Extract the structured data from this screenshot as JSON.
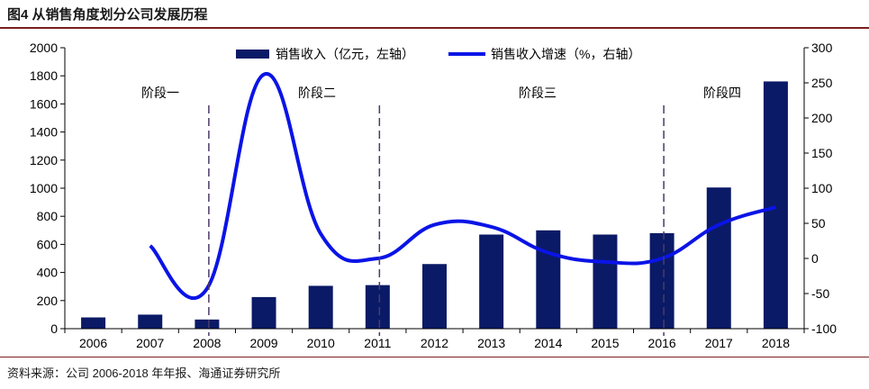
{
  "figure": {
    "title": "图4  从销售角度划分公司发展历程",
    "source": "资料来源：公司 2006-2018 年年报、海通证券研究所"
  },
  "chart_data": {
    "type": "bar",
    "categories": [
      "2006",
      "2007",
      "2008",
      "2009",
      "2010",
      "2011",
      "2012",
      "2013",
      "2014",
      "2015",
      "2016",
      "2017",
      "2018"
    ],
    "series": [
      {
        "name": "销售收入（亿元，左轴）",
        "type": "bar",
        "axis": "left",
        "color": "#0a1a66",
        "values": [
          80,
          100,
          65,
          225,
          305,
          310,
          460,
          670,
          700,
          670,
          680,
          1005,
          1760
        ]
      },
      {
        "name": "销售收入增速（%，右轴）",
        "type": "line",
        "axis": "right",
        "smooth": true,
        "color": "#0a14e6",
        "values": [
          null,
          18,
          -43,
          262,
          35,
          0,
          48,
          45,
          8,
          -5,
          0,
          48,
          73
        ]
      }
    ],
    "y_left": {
      "min": 0,
      "max": 2000,
      "ticks": [
        0,
        200,
        400,
        600,
        800,
        1000,
        1200,
        1400,
        1600,
        1800,
        2000
      ]
    },
    "y_right": {
      "min": -100,
      "max": 300,
      "ticks": [
        -100,
        -50,
        0,
        50,
        100,
        150,
        200,
        250,
        300
      ]
    },
    "stages": [
      {
        "label": "阶段一",
        "divider_after": "2008"
      },
      {
        "label": "阶段二",
        "divider_after": "2011"
      },
      {
        "label": "阶段三",
        "divider_after": "2016"
      },
      {
        "label": "阶段四",
        "divider_after": null
      }
    ],
    "legend_position": "top",
    "grid": false
  }
}
